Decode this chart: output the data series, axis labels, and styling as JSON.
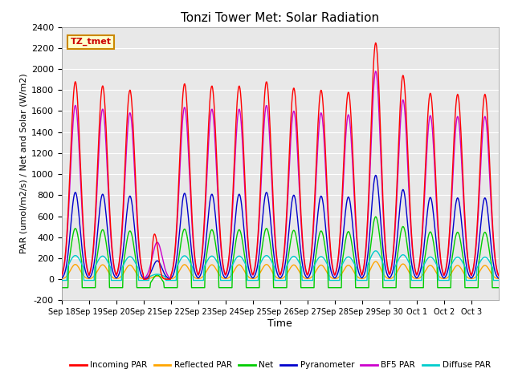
{
  "title": "Tonzi Tower Met: Solar Radiation",
  "ylabel": "PAR (umol/m2/s) / Net and Solar (W/m2)",
  "xlabel": "Time",
  "annotation": "TZ_tmet",
  "ylim": [
    -200,
    2400
  ],
  "yticks": [
    -200,
    0,
    200,
    400,
    600,
    800,
    1000,
    1200,
    1400,
    1600,
    1800,
    2000,
    2200,
    2400
  ],
  "xtick_labels": [
    "Sep 18",
    "Sep 19",
    "Sep 20",
    "Sep 21",
    "Sep 22",
    "Sep 23",
    "Sep 24",
    "Sep 25",
    "Sep 26",
    "Sep 27",
    "Sep 28",
    "Sep 29",
    "Sep 30",
    "Oct 1",
    "Oct 2",
    "Oct 3"
  ],
  "series_colors": {
    "incoming_par": "#ff0000",
    "reflected_par": "#ffa500",
    "net": "#00cc00",
    "pyranometer": "#0000cc",
    "bf5_par": "#cc00cc",
    "diffuse_par": "#00cccc"
  },
  "legend_labels": [
    "Incoming PAR",
    "Reflected PAR",
    "Net",
    "Pyranometer",
    "BF5 PAR",
    "Diffuse PAR"
  ],
  "background_color": "#e8e8e8",
  "n_days": 16,
  "peaks": [
    1880,
    1840,
    1800,
    400,
    1860,
    1840,
    1840,
    1880,
    1820,
    1800,
    1780,
    2250,
    1940,
    1770,
    1760,
    1760
  ]
}
